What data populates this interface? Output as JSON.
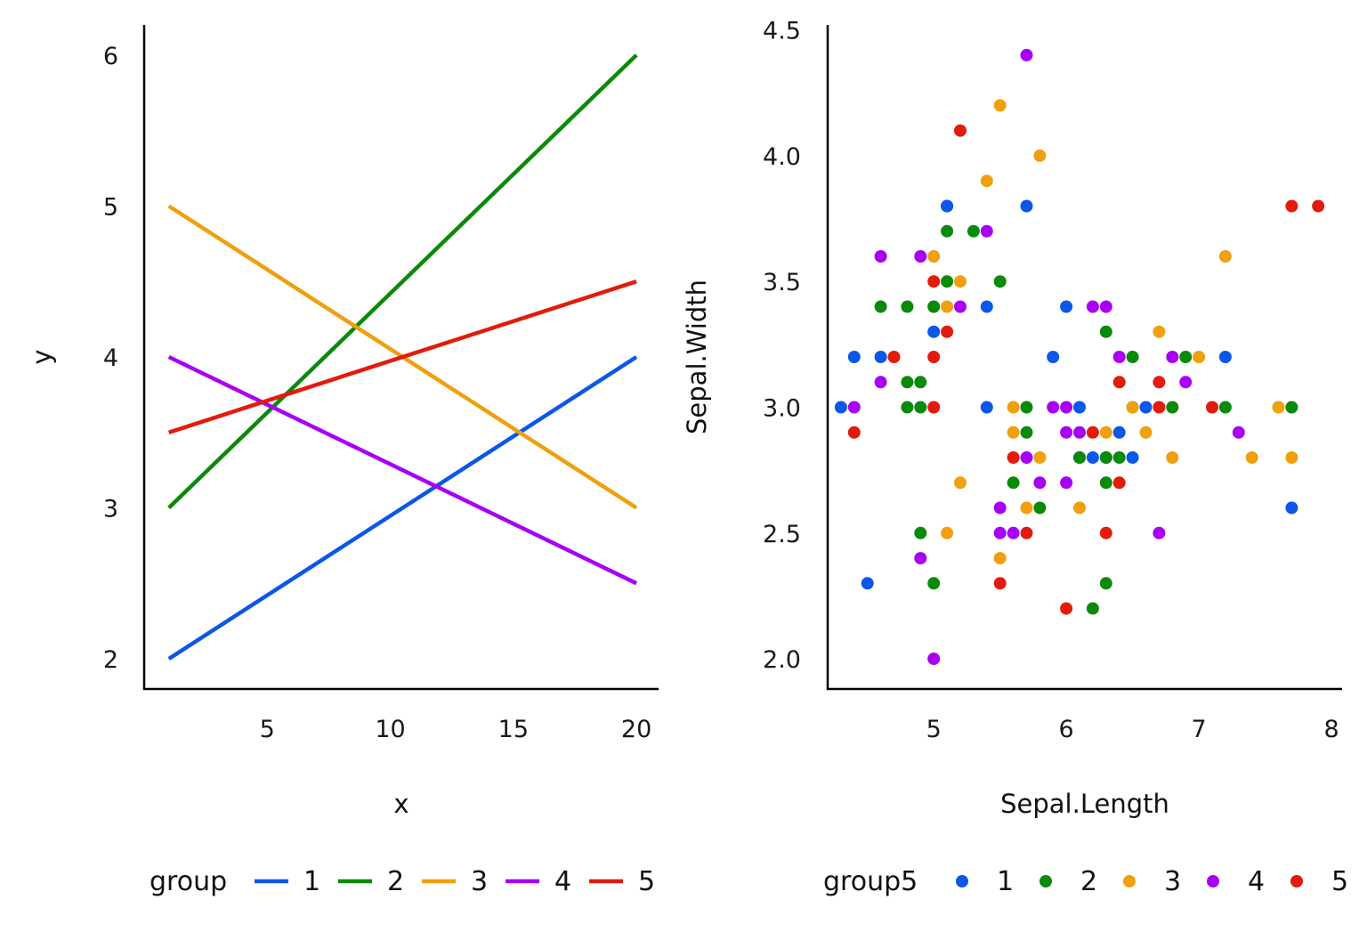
{
  "colors": {
    "1": "#0b57e8",
    "2": "#0a8a0a",
    "3": "#f0a00c",
    "4": "#a800f5",
    "5": "#e21b0c"
  },
  "chart_data": [
    {
      "type": "line",
      "xlabel": "x",
      "ylabel": "y",
      "xlim": [
        0,
        20.9
      ],
      "ylim": [
        1.8,
        6.2
      ],
      "xticks": [
        5,
        10,
        15,
        20
      ],
      "yticks": [
        2,
        3,
        4,
        5,
        6
      ],
      "legend": {
        "title": "group",
        "position": "bottom",
        "entries": [
          "1",
          "2",
          "3",
          "4",
          "5"
        ]
      },
      "series": [
        {
          "name": "1",
          "x": [
            1,
            20
          ],
          "y": [
            2,
            4
          ]
        },
        {
          "name": "2",
          "x": [
            1,
            20
          ],
          "y": [
            3,
            6
          ]
        },
        {
          "name": "3",
          "x": [
            1,
            20
          ],
          "y": [
            5,
            3
          ]
        },
        {
          "name": "4",
          "x": [
            1,
            20
          ],
          "y": [
            4,
            2.5
          ]
        },
        {
          "name": "5",
          "x": [
            1,
            20
          ],
          "y": [
            3.5,
            4.5
          ]
        }
      ]
    },
    {
      "type": "scatter",
      "xlabel": "Sepal.Length",
      "ylabel": "Sepal.Width",
      "xlim": [
        4.2,
        8.08
      ],
      "ylim": [
        1.88,
        4.52
      ],
      "xticks": [
        5,
        6,
        7,
        8
      ],
      "xtick_labels": [
        "5",
        "6",
        "7",
        "8"
      ],
      "yticks": [
        2.0,
        2.5,
        3.0,
        3.5,
        4.0,
        4.5
      ],
      "ytick_labels": [
        "2.0",
        "2.5",
        "3.0",
        "3.5",
        "4.0",
        "4.5"
      ],
      "legend": {
        "title": "group5",
        "position": "bottom",
        "entries": [
          "1",
          "2",
          "3",
          "4",
          "5"
        ]
      },
      "series": [
        {
          "name": "1",
          "points": [
            [
              4.3,
              3.0
            ],
            [
              4.4,
              3.2
            ],
            [
              4.6,
              3.2
            ],
            [
              4.5,
              2.3
            ],
            [
              5.0,
              3.3
            ],
            [
              5.1,
              3.8
            ],
            [
              5.1,
              3.8
            ],
            [
              5.4,
              3.4
            ],
            [
              5.4,
              3.0
            ],
            [
              5.7,
              3.8
            ],
            [
              5.9,
              3.2
            ],
            [
              6.0,
              3.4
            ],
            [
              6.1,
              3.0
            ],
            [
              6.1,
              2.8
            ],
            [
              6.2,
              2.8
            ],
            [
              6.4,
              2.9
            ],
            [
              6.5,
              2.8
            ],
            [
              6.5,
              3.0
            ],
            [
              6.6,
              3.0
            ],
            [
              7.2,
              3.2
            ],
            [
              7.7,
              2.6
            ],
            [
              6.3,
              2.8
            ]
          ]
        },
        {
          "name": "2",
          "points": [
            [
              4.6,
              3.4
            ],
            [
              4.8,
              3.4
            ],
            [
              4.8,
              3.1
            ],
            [
              4.8,
              3.0
            ],
            [
              4.9,
              3.1
            ],
            [
              4.9,
              3.0
            ],
            [
              4.9,
              2.5
            ],
            [
              5.0,
              3.4
            ],
            [
              5.0,
              2.3
            ],
            [
              5.1,
              3.7
            ],
            [
              5.1,
              3.5
            ],
            [
              5.3,
              3.7
            ],
            [
              5.5,
              3.5
            ],
            [
              5.6,
              2.7
            ],
            [
              5.7,
              3.0
            ],
            [
              5.7,
              2.9
            ],
            [
              5.8,
              2.6
            ],
            [
              6.1,
              2.8
            ],
            [
              6.2,
              2.2
            ],
            [
              6.3,
              3.3
            ],
            [
              6.3,
              2.7
            ],
            [
              6.3,
              2.3
            ],
            [
              6.3,
              2.8
            ],
            [
              6.4,
              2.8
            ],
            [
              6.5,
              3.2
            ],
            [
              6.8,
              3.0
            ],
            [
              6.9,
              3.2
            ],
            [
              7.2,
              3.0
            ],
            [
              7.7,
              3.0
            ]
          ]
        },
        {
          "name": "3",
          "points": [
            [
              5.0,
              3.6
            ],
            [
              5.1,
              3.4
            ],
            [
              5.1,
              2.5
            ],
            [
              5.2,
              3.5
            ],
            [
              5.2,
              2.7
            ],
            [
              5.4,
              3.9
            ],
            [
              5.5,
              4.2
            ],
            [
              5.5,
              2.4
            ],
            [
              5.6,
              3.0
            ],
            [
              5.6,
              2.9
            ],
            [
              5.7,
              2.6
            ],
            [
              5.8,
              4.0
            ],
            [
              5.8,
              2.8
            ],
            [
              6.1,
              2.6
            ],
            [
              6.3,
              2.9
            ],
            [
              6.5,
              3.0
            ],
            [
              6.6,
              2.9
            ],
            [
              6.7,
              3.3
            ],
            [
              6.8,
              2.8
            ],
            [
              7.0,
              3.2
            ],
            [
              7.2,
              3.6
            ],
            [
              7.4,
              2.8
            ],
            [
              7.6,
              3.0
            ],
            [
              7.7,
              2.8
            ]
          ]
        },
        {
          "name": "4",
          "points": [
            [
              4.4,
              3.0
            ],
            [
              4.6,
              3.6
            ],
            [
              4.6,
              3.1
            ],
            [
              4.9,
              3.6
            ],
            [
              4.9,
              2.4
            ],
            [
              5.0,
              2.0
            ],
            [
              5.2,
              3.4
            ],
            [
              5.4,
              3.7
            ],
            [
              5.5,
              2.6
            ],
            [
              5.5,
              2.5
            ],
            [
              5.6,
              2.5
            ],
            [
              5.7,
              4.4
            ],
            [
              5.7,
              2.8
            ],
            [
              5.8,
              2.7
            ],
            [
              5.9,
              3.0
            ],
            [
              6.0,
              3.0
            ],
            [
              6.0,
              2.9
            ],
            [
              6.0,
              2.7
            ],
            [
              6.1,
              2.9
            ],
            [
              6.2,
              3.4
            ],
            [
              6.3,
              3.4
            ],
            [
              6.4,
              3.2
            ],
            [
              6.7,
              2.5
            ],
            [
              6.8,
              3.2
            ],
            [
              6.9,
              3.1
            ],
            [
              7.3,
              2.9
            ]
          ]
        },
        {
          "name": "5",
          "points": [
            [
              4.4,
              2.9
            ],
            [
              4.7,
              3.2
            ],
            [
              5.0,
              3.5
            ],
            [
              5.0,
              3.2
            ],
            [
              5.0,
              3.0
            ],
            [
              5.1,
              3.3
            ],
            [
              5.2,
              4.1
            ],
            [
              5.5,
              2.3
            ],
            [
              5.6,
              2.8
            ],
            [
              5.7,
              2.5
            ],
            [
              6.0,
              2.2
            ],
            [
              6.2,
              2.9
            ],
            [
              6.3,
              2.5
            ],
            [
              6.4,
              3.1
            ],
            [
              6.4,
              2.7
            ],
            [
              6.7,
              3.1
            ],
            [
              6.7,
              3.0
            ],
            [
              7.1,
              3.0
            ],
            [
              7.7,
              3.8
            ],
            [
              7.9,
              3.8
            ]
          ]
        }
      ]
    }
  ]
}
